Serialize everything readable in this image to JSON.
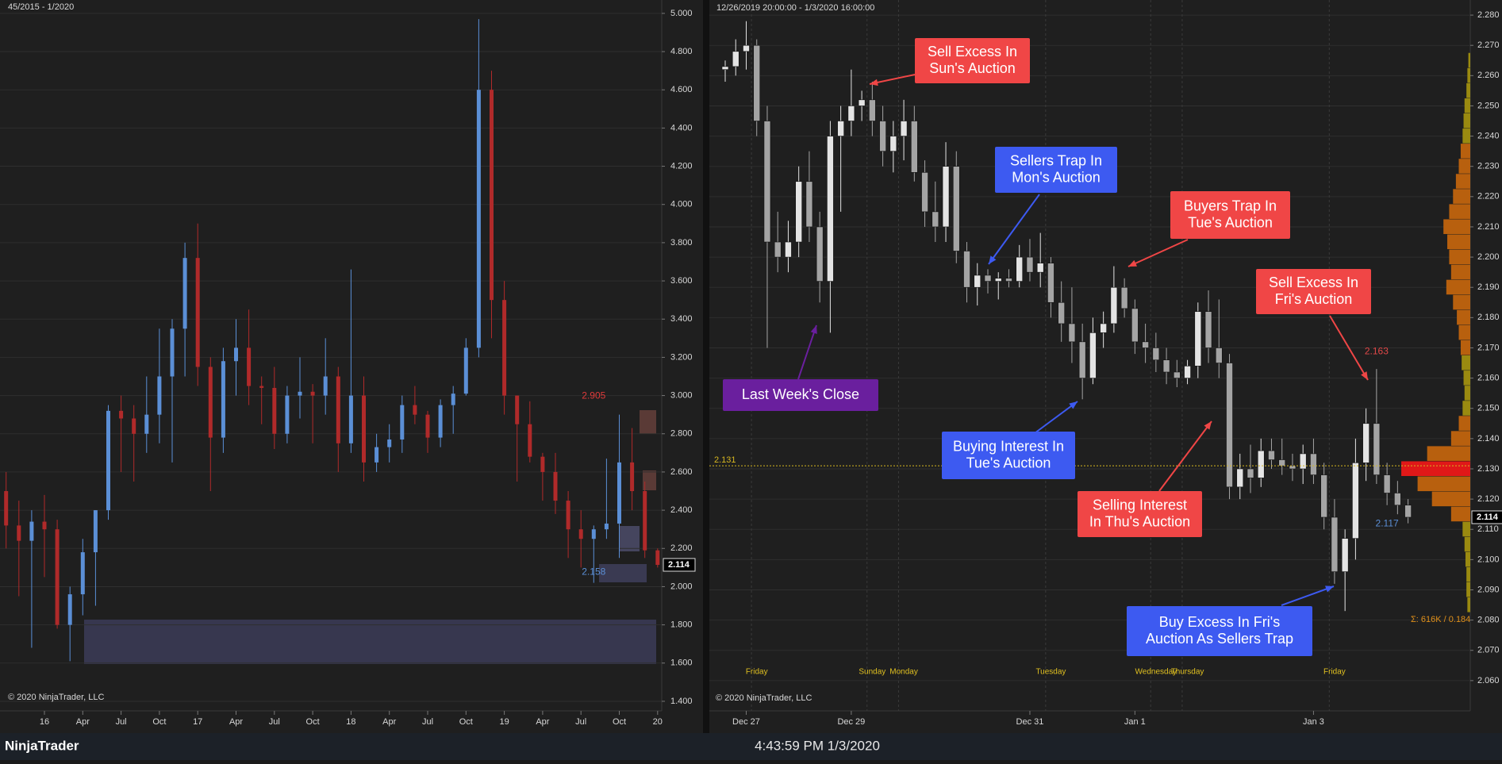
{
  "app_name": "NinjaTrader",
  "status_time": "4:43:59 PM 1/3/2020",
  "chart_data": [
    {
      "type": "candlestick",
      "header": "45/2015 - 1/2020",
      "copyright": "© 2020 NinjaTrader, LLC",
      "categories": [
        null,
        null,
        null,
        "16",
        null,
        null,
        "Apr",
        null,
        null,
        "Jul",
        null,
        null,
        "Oct",
        null,
        null,
        "17",
        null,
        null,
        "Apr",
        null,
        null,
        "Jul",
        null,
        null,
        "Oct",
        null,
        null,
        "18",
        null,
        null,
        "Apr",
        null,
        null,
        "Jul",
        null,
        null,
        "Oct",
        null,
        null,
        "19",
        null,
        null,
        "Apr",
        null,
        null,
        "Jul",
        null,
        null,
        "Oct",
        null,
        null,
        "20"
      ],
      "open": [
        2.5,
        2.32,
        2.24,
        2.34,
        2.3,
        1.8,
        1.96,
        2.18,
        2.4,
        2.92,
        2.88,
        2.8,
        2.9,
        3.1,
        3.35,
        3.72,
        3.15,
        2.78,
        3.18,
        3.25,
        3.05,
        3.04,
        2.8,
        3.0,
        3.02,
        3.0,
        3.1,
        2.75,
        3.0,
        2.65,
        2.73,
        2.77,
        2.95,
        2.9,
        2.78,
        2.95,
        3.01,
        3.25,
        4.6,
        3.5,
        3.0,
        2.85,
        2.68,
        2.6,
        2.45,
        2.3,
        2.25,
        2.3,
        2.33,
        2.65,
        2.5,
        2.19
      ],
      "high": [
        2.6,
        2.45,
        2.4,
        2.48,
        2.35,
        2.0,
        2.25,
        2.4,
        2.95,
        3.0,
        2.95,
        3.1,
        3.35,
        3.4,
        3.8,
        3.9,
        3.2,
        3.25,
        3.4,
        3.45,
        3.1,
        3.15,
        3.05,
        3.2,
        3.06,
        3.3,
        3.15,
        3.66,
        3.1,
        2.8,
        2.85,
        3.0,
        3.05,
        2.92,
        2.98,
        3.05,
        3.3,
        4.97,
        4.7,
        3.6,
        3.0,
        2.97,
        2.7,
        2.7,
        2.5,
        2.4,
        2.32,
        2.67,
        2.9,
        2.83,
        2.55,
        2.2
      ],
      "low": [
        2.2,
        1.95,
        1.68,
        2.05,
        1.78,
        1.61,
        1.85,
        1.9,
        2.35,
        2.6,
        2.55,
        2.7,
        2.75,
        2.65,
        3.1,
        3.05,
        2.5,
        2.7,
        3.0,
        2.95,
        2.85,
        2.72,
        2.75,
        2.88,
        2.75,
        2.9,
        2.6,
        2.7,
        2.55,
        2.6,
        2.65,
        2.7,
        2.85,
        2.7,
        2.73,
        2.8,
        3.0,
        3.2,
        3.3,
        2.9,
        2.55,
        2.65,
        2.45,
        2.38,
        2.15,
        2.1,
        2.02,
        2.25,
        2.15,
        2.4,
        2.15,
        2.1
      ],
      "close": [
        2.32,
        2.24,
        2.34,
        2.3,
        1.8,
        1.96,
        2.18,
        2.4,
        2.92,
        2.88,
        2.8,
        2.9,
        3.1,
        3.35,
        3.72,
        3.15,
        2.78,
        3.18,
        3.25,
        3.05,
        3.04,
        2.8,
        3.0,
        3.02,
        3.0,
        3.1,
        2.75,
        3.0,
        2.65,
        2.73,
        2.77,
        2.95,
        2.9,
        2.78,
        2.95,
        3.01,
        3.25,
        4.6,
        3.5,
        3.0,
        2.85,
        2.68,
        2.6,
        2.45,
        2.3,
        2.25,
        2.3,
        2.33,
        2.65,
        2.5,
        2.19,
        2.114
      ],
      "up_color": "#5b8fd6",
      "down_color": "#b02a2a",
      "ylim": [
        1.35,
        5.07
      ],
      "yticks": [
        {
          "value": 1.4,
          "label": "1.400"
        },
        {
          "value": 1.6,
          "label": "1.600"
        },
        {
          "value": 1.8,
          "label": "1.800"
        },
        {
          "value": 2.0,
          "label": "2.000"
        },
        {
          "value": 2.2,
          "label": "2.200"
        },
        {
          "value": 2.4,
          "label": "2.400"
        },
        {
          "value": 2.6,
          "label": "2.600"
        },
        {
          "value": 2.8,
          "label": "2.800"
        },
        {
          "value": 3.0,
          "label": "3.000"
        },
        {
          "value": 3.2,
          "label": "3.200"
        },
        {
          "value": 3.4,
          "label": "3.400"
        },
        {
          "value": 3.6,
          "label": "3.600"
        },
        {
          "value": 3.8,
          "label": "3.800"
        },
        {
          "value": 4.0,
          "label": "4.000"
        },
        {
          "value": 4.2,
          "label": "4.200"
        },
        {
          "value": 4.4,
          "label": "4.400"
        },
        {
          "value": 4.6,
          "label": "4.600"
        },
        {
          "value": 4.8,
          "label": "4.800"
        },
        {
          "value": 5.0,
          "label": "5.000"
        }
      ],
      "grid": true,
      "last_price": 2.114,
      "price_labels": [
        {
          "value": 2.905,
          "color": "#e03a3a",
          "side": "above"
        },
        {
          "value": 2.158,
          "color": "#5b8fd6",
          "side": "below"
        }
      ]
    },
    {
      "type": "candlestick",
      "header": "12/26/2019 20:00:00 - 1/3/2020 16:00:00",
      "copyright": "© 2020 NinjaTrader, LLC",
      "categories": [
        null,
        null,
        "Dec 27",
        null,
        null,
        null,
        null,
        null,
        null,
        null,
        null,
        null,
        "Dec 29",
        null,
        null,
        null,
        null,
        null,
        null,
        null,
        null,
        null,
        null,
        null,
        null,
        null,
        null,
        null,
        null,
        "Dec 31",
        null,
        null,
        null,
        null,
        null,
        null,
        null,
        null,
        null,
        "Jan 1",
        null,
        null,
        null,
        null,
        null,
        null,
        null,
        null,
        null,
        null,
        null,
        null,
        null,
        null,
        null,
        null,
        "Jan 3",
        null,
        null,
        null,
        null,
        null,
        null,
        null,
        null,
        null
      ],
      "day_labels": [
        null,
        null,
        null,
        "Friday",
        null,
        null,
        null,
        null,
        null,
        null,
        null,
        null,
        null,
        null,
        "Sunday",
        null,
        null,
        "Monday",
        null,
        null,
        null,
        null,
        null,
        null,
        null,
        null,
        null,
        null,
        null,
        null,
        null,
        "Tuesday",
        null,
        null,
        null,
        null,
        null,
        null,
        null,
        null,
        null,
        "Wednesday",
        null,
        null,
        "Thursday",
        null,
        null,
        null,
        null,
        null,
        null,
        null,
        null,
        null,
        null,
        null,
        null,
        null,
        "Friday",
        null,
        null,
        null,
        null,
        null,
        null,
        null,
        null
      ],
      "open": [
        2.262,
        2.263,
        2.268,
        2.27,
        2.245,
        2.205,
        2.2,
        2.205,
        2.225,
        2.21,
        2.192,
        2.24,
        2.245,
        2.25,
        2.252,
        2.245,
        2.235,
        2.24,
        2.245,
        2.228,
        2.215,
        2.21,
        2.23,
        2.202,
        2.19,
        2.194,
        2.192,
        2.193,
        2.192,
        2.2,
        2.195,
        2.198,
        2.185,
        2.178,
        2.172,
        2.16,
        2.175,
        2.178,
        2.19,
        2.183,
        2.172,
        2.17,
        2.166,
        2.162,
        2.16,
        2.164,
        2.182,
        2.17,
        2.165,
        2.124,
        2.13,
        2.127,
        2.136,
        2.133,
        2.131,
        2.13,
        2.135,
        2.128,
        2.114,
        2.096,
        2.107,
        2.132,
        2.145,
        2.128,
        2.122,
        2.118
      ],
      "high": [
        2.265,
        2.272,
        2.278,
        2.272,
        2.25,
        2.215,
        2.212,
        2.23,
        2.235,
        2.215,
        2.245,
        2.25,
        2.262,
        2.255,
        2.258,
        2.25,
        2.245,
        2.252,
        2.25,
        2.232,
        2.225,
        2.238,
        2.235,
        2.205,
        2.198,
        2.196,
        2.195,
        2.196,
        2.204,
        2.206,
        2.208,
        2.2,
        2.192,
        2.19,
        2.178,
        2.18,
        2.182,
        2.197,
        2.193,
        2.186,
        2.178,
        2.175,
        2.17,
        2.166,
        2.166,
        2.185,
        2.189,
        2.186,
        2.168,
        2.135,
        2.138,
        2.14,
        2.14,
        2.14,
        2.135,
        2.138,
        2.14,
        2.132,
        2.12,
        2.11,
        2.14,
        2.15,
        2.163,
        2.132,
        2.126,
        2.12
      ],
      "low": [
        2.258,
        2.26,
        2.262,
        2.24,
        2.17,
        2.195,
        2.195,
        2.2,
        2.205,
        2.185,
        2.175,
        2.215,
        2.24,
        2.245,
        2.24,
        2.23,
        2.228,
        2.232,
        2.225,
        2.21,
        2.205,
        2.205,
        2.198,
        2.185,
        2.184,
        2.188,
        2.186,
        2.19,
        2.19,
        2.192,
        2.19,
        2.18,
        2.172,
        2.165,
        2.153,
        2.158,
        2.17,
        2.175,
        2.18,
        2.168,
        2.165,
        2.162,
        2.158,
        2.157,
        2.158,
        2.16,
        2.165,
        2.16,
        2.12,
        2.12,
        2.122,
        2.124,
        2.13,
        2.128,
        2.126,
        2.125,
        2.125,
        2.11,
        2.092,
        2.083,
        2.1,
        2.126,
        2.125,
        2.118,
        2.115,
        2.112
      ],
      "close": [
        2.263,
        2.268,
        2.27,
        2.245,
        2.205,
        2.2,
        2.205,
        2.225,
        2.21,
        2.192,
        2.24,
        2.245,
        2.25,
        2.252,
        2.245,
        2.235,
        2.24,
        2.245,
        2.228,
        2.215,
        2.21,
        2.23,
        2.202,
        2.19,
        2.194,
        2.192,
        2.193,
        2.192,
        2.2,
        2.195,
        2.198,
        2.185,
        2.178,
        2.172,
        2.16,
        2.175,
        2.178,
        2.19,
        2.183,
        2.172,
        2.17,
        2.166,
        2.162,
        2.16,
        2.164,
        2.182,
        2.17,
        2.165,
        2.124,
        2.13,
        2.127,
        2.136,
        2.133,
        2.131,
        2.13,
        2.135,
        2.128,
        2.114,
        2.096,
        2.107,
        2.132,
        2.145,
        2.128,
        2.122,
        2.118,
        2.114
      ],
      "up_color": "#e4e4e4",
      "down_color": "#a4a4a4",
      "ylim": [
        2.05,
        2.285
      ],
      "yticks": [
        {
          "value": 2.06,
          "label": "2.060"
        },
        {
          "value": 2.07,
          "label": "2.070"
        },
        {
          "value": 2.08,
          "label": "2.080"
        },
        {
          "value": 2.09,
          "label": "2.090"
        },
        {
          "value": 2.1,
          "label": "2.100"
        },
        {
          "value": 2.11,
          "label": "2.110"
        },
        {
          "value": 2.12,
          "label": "2.120"
        },
        {
          "value": 2.13,
          "label": "2.130"
        },
        {
          "value": 2.14,
          "label": "2.140"
        },
        {
          "value": 2.15,
          "label": "2.150"
        },
        {
          "value": 2.16,
          "label": "2.160"
        },
        {
          "value": 2.17,
          "label": "2.170"
        },
        {
          "value": 2.18,
          "label": "2.180"
        },
        {
          "value": 2.19,
          "label": "2.190"
        },
        {
          "value": 2.2,
          "label": "2.200"
        },
        {
          "value": 2.21,
          "label": "2.210"
        },
        {
          "value": 2.22,
          "label": "2.220"
        },
        {
          "value": 2.23,
          "label": "2.230"
        },
        {
          "value": 2.24,
          "label": "2.240"
        },
        {
          "value": 2.25,
          "label": "2.250"
        },
        {
          "value": 2.26,
          "label": "2.260"
        },
        {
          "value": 2.27,
          "label": "2.270"
        },
        {
          "value": 2.28,
          "label": "2.280"
        }
      ],
      "grid": true,
      "last_price": 2.114,
      "price_labels": [
        {
          "value": 2.163,
          "color": "#e04848",
          "side": "above"
        },
        {
          "value": 2.117,
          "color": "#5b8fd6",
          "side": "below"
        },
        {
          "value": 2.131,
          "color": "#d8b820",
          "side": "line"
        }
      ],
      "profile_levels": [
        2.085,
        2.09,
        2.095,
        2.1,
        2.105,
        2.11,
        2.115,
        2.12,
        2.125,
        2.13,
        2.135,
        2.14,
        2.145,
        2.15,
        2.155,
        2.16,
        2.165,
        2.17,
        2.175,
        2.18,
        2.185,
        2.19,
        2.195,
        2.2,
        2.205,
        2.21,
        2.215,
        2.22,
        2.225,
        2.23,
        2.235,
        2.24,
        2.245,
        2.25,
        2.255,
        2.26,
        2.265
      ],
      "profile_volumes": [
        3,
        4,
        4,
        5,
        6,
        8,
        20,
        40,
        55,
        72,
        45,
        20,
        12,
        8,
        6,
        7,
        9,
        10,
        12,
        14,
        18,
        25,
        20,
        22,
        24,
        28,
        22,
        18,
        15,
        12,
        10,
        8,
        7,
        6,
        4,
        3,
        2
      ],
      "profile_summary": "Σ: 616K / 0.184",
      "annotations": [
        {
          "lines": [
            "Sell Excess In",
            "Sun's Auction"
          ],
          "color": "#f04646"
        },
        {
          "lines": [
            "Sellers Trap In",
            "Mon's Auction"
          ],
          "color": "#3d5af1"
        },
        {
          "lines": [
            "Buyers Trap In",
            "Tue's Auction"
          ],
          "color": "#f04646"
        },
        {
          "lines": [
            "Sell Excess In",
            "Fri's Auction"
          ],
          "color": "#f04646"
        },
        {
          "lines": [
            "Last Week's Close"
          ],
          "color": "#6a1f9e"
        },
        {
          "lines": [
            "Buying Interest In",
            "Tue's Auction"
          ],
          "color": "#3d5af1"
        },
        {
          "lines": [
            "Selling Interest",
            "In Thu's Auction"
          ],
          "color": "#f04646"
        },
        {
          "lines": [
            "Buy Excess In Fri's",
            "Auction As Sellers Trap"
          ],
          "color": "#3d5af1"
        }
      ]
    }
  ]
}
